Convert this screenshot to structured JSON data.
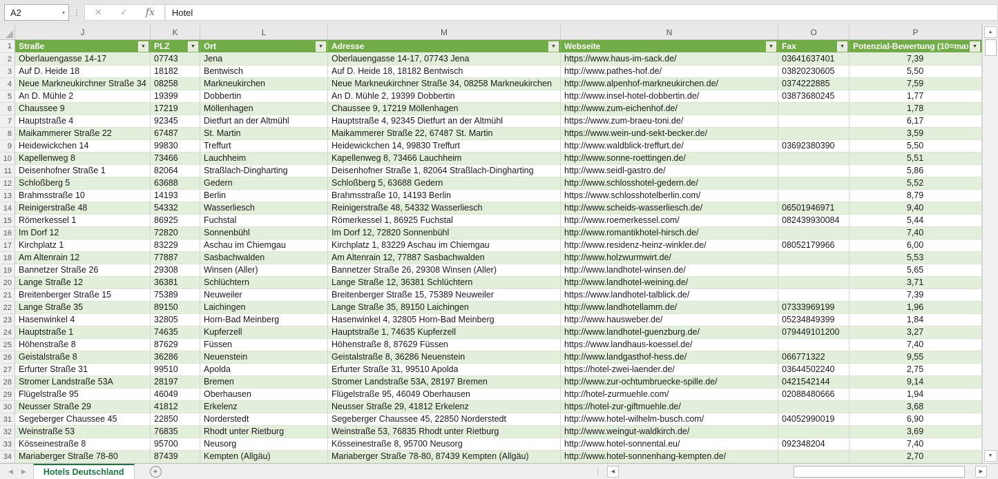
{
  "formula_bar": {
    "name_box_value": "A2",
    "formula_value": "Hotel"
  },
  "icons": {
    "name_box_dropdown": "▾",
    "cancel": "✕",
    "enter": "✓",
    "function": "fx",
    "filter": "▼",
    "scroll_up": "▲",
    "scroll_down": "▼",
    "scroll_left": "◀",
    "scroll_right": "▶",
    "tab_prev": "◀",
    "tab_next": "▶",
    "drag_handle": "⋮",
    "add_sheet": "+"
  },
  "grid": {
    "column_letters": [
      "J",
      "K",
      "L",
      "M",
      "N",
      "O",
      "P"
    ],
    "first_row_number": 1
  },
  "table": {
    "headers": [
      "Straße",
      "PLZ",
      "Ort",
      "Adresse",
      "Webseite",
      "Fax",
      "Potenzial-Bewertung (10=max)"
    ],
    "rows": [
      [
        "Oberlauengasse 14-17",
        "07743",
        "Jena",
        "Oberlauengasse 14-17, 07743 Jena",
        "https://www.haus-im-sack.de/",
        "03641637401",
        "7,39"
      ],
      [
        "Auf D. Heide 18",
        "18182",
        "Bentwisch",
        "Auf D. Heide 18, 18182 Bentwisch",
        "http://www.pathes-hof.de/",
        "03820230605",
        "5,50"
      ],
      [
        "Neue Markneukirchner Straße 34",
        "08258",
        "Markneukirchen",
        "Neue Markneukirchner Straße 34, 08258 Markneukirchen",
        "http://www.alpenhof-markneukirchen.de/",
        "0374222885",
        "7,59"
      ],
      [
        "An D. Mühle 2",
        "19399",
        "Dobbertin",
        "An D. Mühle 2, 19399 Dobbertin",
        "http://www.insel-hotel-dobbertin.de/",
        "03873680245",
        "1,77"
      ],
      [
        "Chaussee 9",
        "17219",
        "Möllenhagen",
        "Chaussee 9, 17219 Möllenhagen",
        "http://www.zum-eichenhof.de/",
        "",
        "1,78"
      ],
      [
        "Hauptstraße 4",
        "92345",
        "Dietfurt an der Altmühl",
        "Hauptstraße 4, 92345 Dietfurt an der Altmühl",
        "https://www.zum-braeu-toni.de/",
        "",
        "6,17"
      ],
      [
        "Maikammerer Straße 22",
        "67487",
        "St. Martin",
        "Maikammerer Straße 22, 67487 St. Martin",
        "https://www.wein-und-sekt-becker.de/",
        "",
        "3,59"
      ],
      [
        "Heidewickchen 14",
        "99830",
        "Treffurt",
        "Heidewickchen 14, 99830 Treffurt",
        "http://www.waldblick-treffurt.de/",
        "03692380390",
        "5,50"
      ],
      [
        "Kapellenweg 8",
        "73466",
        "Lauchheim",
        "Kapellenweg 8, 73466 Lauchheim",
        "http://www.sonne-roettingen.de/",
        "",
        "5,51"
      ],
      [
        "Deisenhofner Straße 1",
        "82064",
        "Straßlach-Dingharting",
        "Deisenhofner Straße 1, 82064 Straßlach-Dingharting",
        "http://www.seidl-gastro.de/",
        "",
        "5,86"
      ],
      [
        "Schloßberg 5",
        "63688",
        "Gedern",
        "Schloßberg 5, 63688 Gedern",
        "http://www.schlosshotel-gedern.de/",
        "",
        "5,52"
      ],
      [
        "Brahmsstraße 10",
        "14193",
        "Berlin",
        "Brahmsstraße 10, 14193 Berlin",
        "https://www.schlosshotelberlin.com/",
        "",
        "8,79"
      ],
      [
        "Reinigerstraße 48",
        "54332",
        "Wasserliesch",
        "Reinigerstraße 48, 54332 Wasserliesch",
        "http://www.scheids-wasserliesch.de/",
        "06501946971",
        "9,40"
      ],
      [
        "Römerkessel 1",
        "86925",
        "Fuchstal",
        "Römerkessel 1, 86925 Fuchstal",
        "http://www.roemerkessel.com/",
        "082439930084",
        "5,44"
      ],
      [
        "Im Dorf 12",
        "72820",
        "Sonnenbühl",
        "Im Dorf 12, 72820 Sonnenbühl",
        "http://www.romantikhotel-hirsch.de/",
        "",
        "7,40"
      ],
      [
        "Kirchplatz 1",
        "83229",
        "Aschau im Chiemgau",
        "Kirchplatz 1, 83229 Aschau im Chiemgau",
        "http://www.residenz-heinz-winkler.de/",
        "08052179966",
        "6,00"
      ],
      [
        "Am Altenrain 12",
        "77887",
        "Sasbachwalden",
        "Am Altenrain 12, 77887 Sasbachwalden",
        "http://www.holzwurmwirt.de/",
        "",
        "5,53"
      ],
      [
        "Bannetzer Straße 26",
        "29308",
        "Winsen (Aller)",
        "Bannetzer Straße 26, 29308 Winsen (Aller)",
        "http://www.landhotel-winsen.de/",
        "",
        "5,65"
      ],
      [
        "Lange Straße 12",
        "36381",
        "Schlüchtern",
        "Lange Straße 12, 36381 Schlüchtern",
        "http://www.landhotel-weining.de/",
        "",
        "3,71"
      ],
      [
        "Breitenberger Straße 15",
        "75389",
        "Neuweiler",
        "Breitenberger Straße 15, 75389 Neuweiler",
        "https://www.landhotel-talblick.de/",
        "",
        "7,39"
      ],
      [
        "Lange Straße 35",
        "89150",
        "Laichingen",
        "Lange Straße 35, 89150 Laichingen",
        "http://www.landhotellamm.de/",
        "07333969199",
        "1,96"
      ],
      [
        "Hasenwinkel 4",
        "32805",
        "Horn-Bad Meinberg",
        "Hasenwinkel 4, 32805 Horn-Bad Meinberg",
        "http://www.hausweber.de/",
        "05234849399",
        "1,84"
      ],
      [
        "Hauptstraße 1",
        "74635",
        "Kupferzell",
        "Hauptstraße 1, 74635 Kupferzell",
        "http://www.landhotel-guenzburg.de/",
        "079449101200",
        "3,27"
      ],
      [
        "Höhenstraße 8",
        "87629",
        "Füssen",
        "Höhenstraße 8, 87629 Füssen",
        "https://www.landhaus-koessel.de/",
        "",
        "7,40"
      ],
      [
        "Geistalstraße 8",
        "36286",
        "Neuenstein",
        "Geistalstraße 8, 36286 Neuenstein",
        "http://www.landgasthof-hess.de/",
        "066771322",
        "9,55"
      ],
      [
        "Erfurter Straße 31",
        "99510",
        "Apolda",
        "Erfurter Straße 31, 99510 Apolda",
        "https://hotel-zwei-laender.de/",
        "03644502240",
        "2,75"
      ],
      [
        "Stromer Landstraße 53A",
        "28197",
        "Bremen",
        "Stromer Landstraße 53A, 28197 Bremen",
        "http://www.zur-ochtumbruecke-spille.de/",
        "0421542144",
        "9,14"
      ],
      [
        "Flügelstraße 95",
        "46049",
        "Oberhausen",
        "Flügelstraße 95, 46049 Oberhausen",
        "http://hotel-zurmuehle.com/",
        "02088480666",
        "1,94"
      ],
      [
        "Neusser Straße 29",
        "41812",
        "Erkelenz",
        "Neusser Straße 29, 41812 Erkelenz",
        "https://hotel-zur-giftmuehle.de/",
        "",
        "3,68"
      ],
      [
        "Segeberger Chaussee 45",
        "22850",
        "Norderstedt",
        "Segeberger Chaussee 45, 22850 Norderstedt",
        "http://www.hotel-wilhelm-busch.com/",
        "04052990019",
        "6,90"
      ],
      [
        "Weinstraße 53",
        "76835",
        "Rhodt unter Rietburg",
        "Weinstraße 53, 76835 Rhodt unter Rietburg",
        "http://www.weingut-waldkirch.de/",
        "",
        "3,69"
      ],
      [
        "Kösseinestraße 8",
        "95700",
        "Neusorg",
        "Kösseinestraße 8, 95700 Neusorg",
        "http://www.hotel-sonnental.eu/",
        "092348204",
        "7,40"
      ],
      [
        "Mariaberger Straße 78-80",
        "87439",
        "Kempten (Allgäu)",
        "Mariaberger Straße 78-80, 87439 Kempten (Allgäu)",
        "http://www.hotel-sonnenhang-kempten.de/",
        "",
        "2,70"
      ]
    ]
  },
  "sheet_tabs": {
    "active_tab": "Hotels Deutschland"
  },
  "colors": {
    "header_green": "#70AD47",
    "band_green": "#E2EFDA",
    "tab_green": "#217346"
  }
}
